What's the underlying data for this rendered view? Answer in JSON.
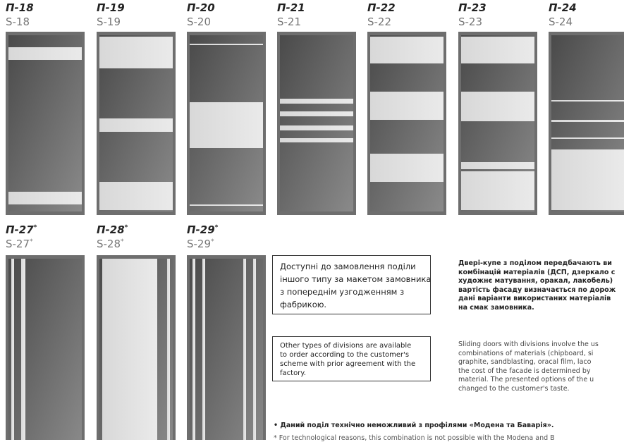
{
  "doors_top": [
    {
      "label": "П-18",
      "code": "S-18"
    },
    {
      "label": "П-19",
      "code": "S-19"
    },
    {
      "label": "П-20",
      "code": "S-20"
    },
    {
      "label": "П-21",
      "code": "S-21"
    },
    {
      "label": "П-22",
      "code": "S-22"
    },
    {
      "label": "П-23",
      "code": "S-23"
    },
    {
      "label": "П-24",
      "code": "S-24"
    }
  ],
  "doors_bottom": [
    {
      "label": "П-27",
      "label_star": "*",
      "code": "S-27",
      "code_star": "*"
    },
    {
      "label": "П-28",
      "label_star": "*",
      "code": "S-28",
      "code_star": "*"
    },
    {
      "label": "П-29",
      "label_star": "*",
      "code": "S-29",
      "code_star": "*"
    }
  ],
  "box_ua": {
    "lines": [
      "Доступні до замовлення поділи",
      "іншого типу за макетом замовника",
      "з попереднім узгодженням з",
      "фабрикою."
    ]
  },
  "box_en": {
    "lines": [
      "Other types of divisions are available",
      "to order according to the customer's",
      "scheme with prior agreement with the",
      "factory."
    ]
  },
  "desc_ua": {
    "lines": [
      "Двері-купе з поділом передбачають ви",
      "комбінацій матеріалів (ДСП, дзеркало с",
      "художнє матування, оракал, лакобель)",
      "вартість фасаду визначається по дорож",
      "дані варіанти використаних матеріалів",
      "на смак замовника."
    ]
  },
  "desc_en": {
    "lines": [
      "Sliding doors with divisions involve the us",
      "combinations of materials (chipboard, si",
      "graphite, sandblasting, oracal film, laco",
      "the cost of the facade is determined by",
      "material. The presented options of the u",
      "changed to the customer's taste."
    ]
  },
  "notes": [
    "• Даний поділ технічно неможливий з профілями «Модена та Баварія».",
    "* For technological reasons, this combination is not possible with the Modena and B"
  ]
}
